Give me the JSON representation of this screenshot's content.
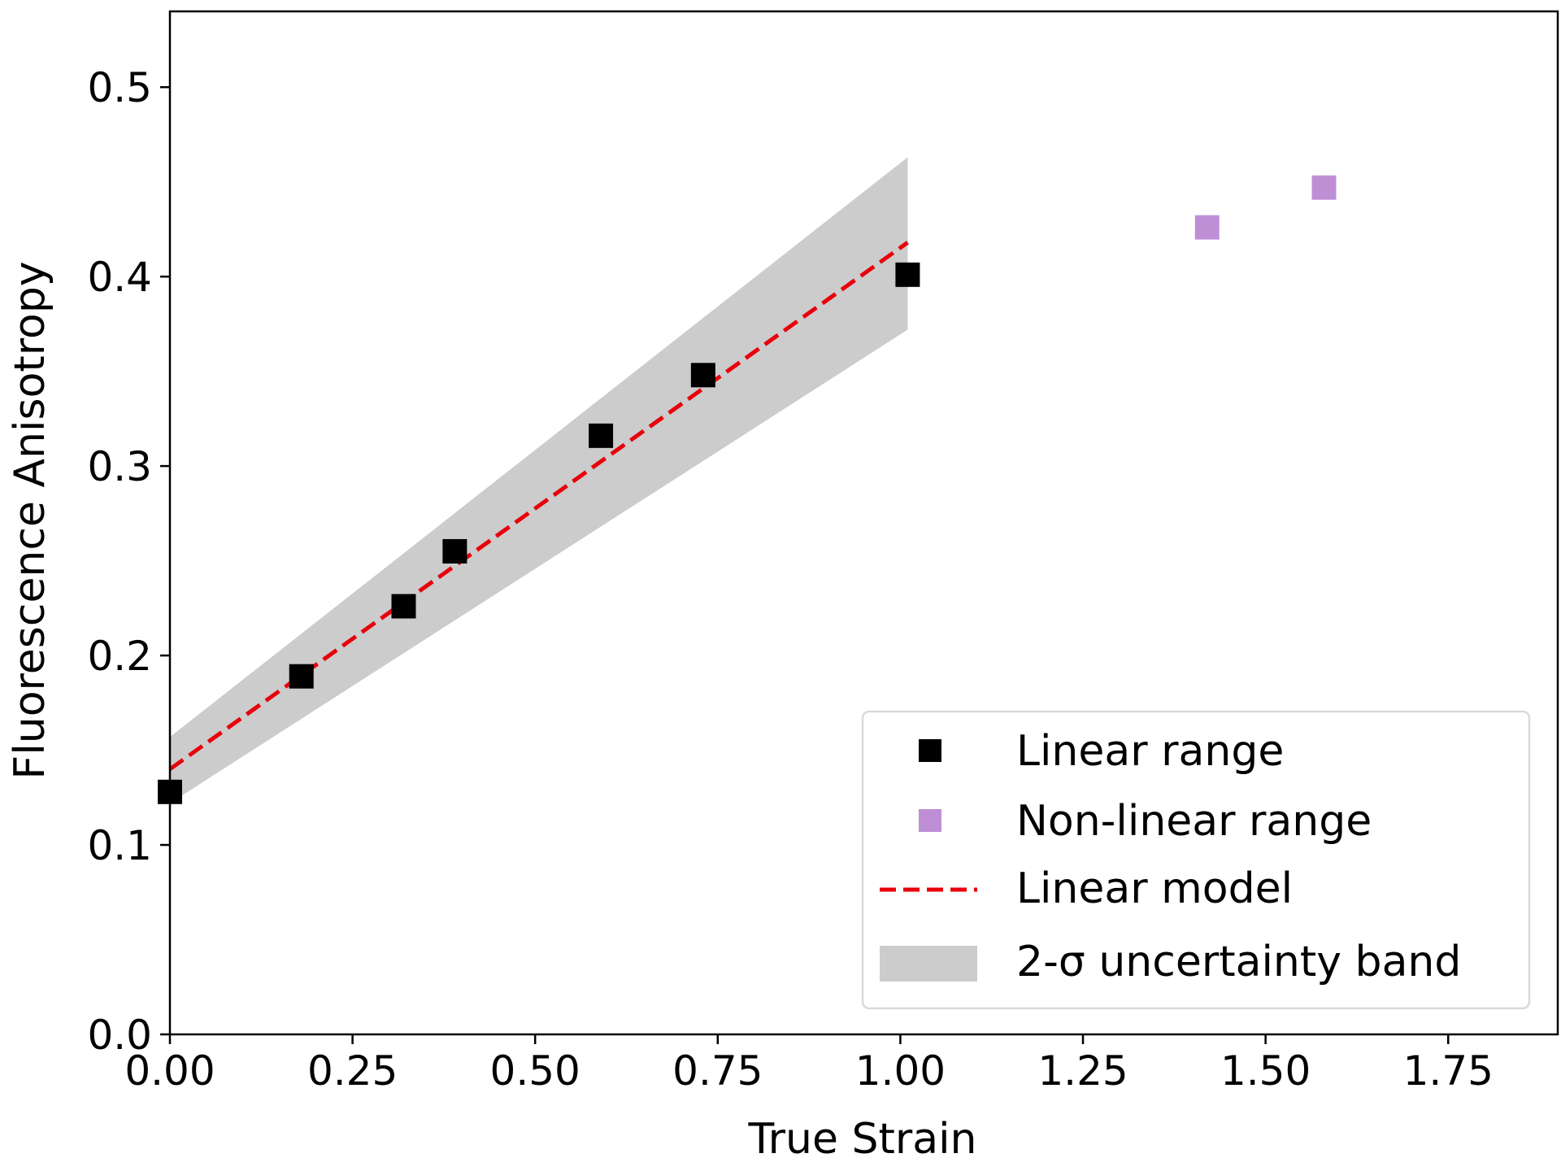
{
  "chart_data": {
    "type": "scatter",
    "xlabel": "True Strain",
    "ylabel": "Fluorescence Anisotropy",
    "xlim": [
      0,
      1.9
    ],
    "ylim": [
      0,
      0.54
    ],
    "xticks": [
      "0.00",
      "0.25",
      "0.50",
      "0.75",
      "1.00",
      "1.25",
      "1.50",
      "1.75"
    ],
    "xtick_values": [
      0,
      0.25,
      0.5,
      0.75,
      1.0,
      1.25,
      1.5,
      1.75
    ],
    "yticks": [
      "0.0",
      "0.1",
      "0.2",
      "0.3",
      "0.4",
      "0.5"
    ],
    "ytick_values": [
      0,
      0.1,
      0.2,
      0.3,
      0.4,
      0.5
    ],
    "grid": false,
    "legend_position": "lower-right",
    "series": [
      {
        "name": "Linear range",
        "type": "scatter",
        "marker": "square",
        "color": "#000000",
        "x": [
          0.0,
          0.18,
          0.32,
          0.39,
          0.59,
          0.73,
          1.01
        ],
        "y": [
          0.128,
          0.189,
          0.226,
          0.255,
          0.316,
          0.348,
          0.401
        ]
      },
      {
        "name": "Non-linear range",
        "type": "scatter",
        "marker": "square",
        "color": "#bf8fd6",
        "x": [
          1.42,
          1.58
        ],
        "y": [
          0.426,
          0.447
        ]
      },
      {
        "name": "Linear model",
        "type": "line",
        "style": "dashed",
        "color": "#e8000b",
        "x": [
          0.0,
          1.01
        ],
        "y": [
          0.14,
          0.418
        ]
      },
      {
        "name": "2-σ uncertainty band",
        "type": "area",
        "color": "#cccccc",
        "x": [
          0.0,
          1.01
        ],
        "y_lower": [
          0.122,
          0.372
        ],
        "y_upper": [
          0.157,
          0.463
        ]
      }
    ]
  }
}
